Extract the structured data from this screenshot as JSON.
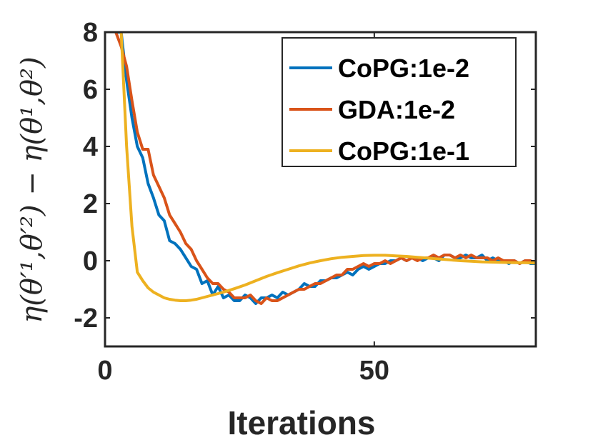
{
  "chart_data": {
    "type": "line",
    "xlabel": "Iterations",
    "ylabel": "η(θ′¹,θ′²) − η(θ¹,θ²)",
    "xlim": [
      0,
      80
    ],
    "ylim": [
      -3,
      8
    ],
    "xticks": [
      0,
      50
    ],
    "yticks": [
      8,
      6,
      4,
      2,
      0,
      -2
    ],
    "grid": false,
    "legend_position": "top-right",
    "series": [
      {
        "name": "CoPG:1e-2",
        "color": "#0072BD",
        "x": [
          2,
          3,
          4,
          5,
          6,
          7,
          8,
          9,
          10,
          11,
          12,
          13,
          14,
          15,
          16,
          17,
          18,
          19,
          20,
          21,
          22,
          23,
          24,
          25,
          26,
          27,
          28,
          29,
          30,
          31,
          32,
          33,
          34,
          35,
          36,
          37,
          38,
          39,
          40,
          41,
          42,
          43,
          44,
          45,
          46,
          47,
          48,
          49,
          50,
          51,
          52,
          53,
          54,
          55,
          56,
          57,
          58,
          59,
          60,
          61,
          62,
          63,
          64,
          65,
          66,
          67,
          68,
          69,
          70,
          71,
          72,
          73,
          74,
          75,
          76,
          77,
          78,
          79,
          80
        ],
        "y": [
          8,
          8,
          6.3,
          5.0,
          4.0,
          3.6,
          2.7,
          2.2,
          1.6,
          1.4,
          0.7,
          0.6,
          0.4,
          0.1,
          -0.2,
          -0.3,
          -0.8,
          -0.7,
          -1.2,
          -0.9,
          -1.3,
          -1.2,
          -1.4,
          -1.4,
          -1.2,
          -1.3,
          -1.5,
          -1.3,
          -1.3,
          -1.2,
          -1.3,
          -1.1,
          -1.2,
          -1.1,
          -1.0,
          -0.8,
          -0.9,
          -0.9,
          -0.7,
          -0.7,
          -0.6,
          -0.6,
          -0.5,
          -0.4,
          -0.5,
          -0.3,
          -0.2,
          -0.3,
          -0.2,
          -0.1,
          -0.1,
          0.0,
          0.0,
          0.1,
          0.0,
          0.1,
          0.1,
          0.0,
          0.1,
          0.1,
          0.0,
          0.2,
          0.2,
          0.1,
          0.1,
          0.2,
          0.1,
          0.1,
          0.2,
          0.0,
          0.1,
          0.0,
          0.0,
          -0.1,
          0.0,
          -0.1,
          0.0,
          -0.1,
          -0.1
        ]
      },
      {
        "name": "GDA:1e-2",
        "color": "#D95319",
        "x": [
          2,
          3,
          4,
          5,
          6,
          7,
          8,
          9,
          10,
          11,
          12,
          13,
          14,
          15,
          16,
          17,
          18,
          19,
          20,
          21,
          22,
          23,
          24,
          25,
          26,
          27,
          28,
          29,
          30,
          31,
          32,
          33,
          34,
          35,
          36,
          37,
          38,
          39,
          40,
          41,
          42,
          43,
          44,
          45,
          46,
          47,
          48,
          49,
          50,
          51,
          52,
          53,
          54,
          55,
          56,
          57,
          58,
          59,
          60,
          61,
          62,
          63,
          64,
          65,
          66,
          67,
          68,
          69,
          70,
          71,
          72,
          73,
          74,
          75,
          76,
          77,
          78,
          79,
          80
        ],
        "y": [
          8,
          7.5,
          6.8,
          5.6,
          4.5,
          3.9,
          3.9,
          3.0,
          2.6,
          2.2,
          1.6,
          1.3,
          1.0,
          0.6,
          0.4,
          0.0,
          -0.3,
          -0.6,
          -0.8,
          -0.8,
          -1.0,
          -1.1,
          -1.3,
          -1.3,
          -1.3,
          -1.2,
          -1.4,
          -1.5,
          -1.3,
          -1.4,
          -1.4,
          -1.3,
          -1.2,
          -1.1,
          -1.0,
          -1.0,
          -0.9,
          -0.8,
          -0.8,
          -0.7,
          -0.6,
          -0.5,
          -0.5,
          -0.3,
          -0.3,
          -0.2,
          -0.1,
          -0.2,
          -0.1,
          -0.1,
          0.0,
          -0.1,
          0.0,
          0.1,
          0.0,
          0.1,
          0.0,
          0.1,
          0.1,
          0.2,
          0.1,
          0.2,
          0.2,
          0.1,
          0.2,
          0.1,
          0.2,
          0.1,
          0.1,
          0.1,
          0.0,
          0.1,
          0.0,
          0.0,
          0.0,
          -0.1,
          0.0,
          0.0,
          -0.1
        ]
      },
      {
        "name": "CoPG:1e-1",
        "color": "#EDB120",
        "x": [
          3,
          4,
          5,
          6,
          7,
          8,
          9,
          10,
          11,
          12,
          13,
          14,
          15,
          16,
          17,
          18,
          19,
          20,
          22,
          24,
          26,
          28,
          30,
          32,
          34,
          36,
          38,
          40,
          42,
          44,
          46,
          48,
          50,
          52,
          54,
          56,
          58,
          60,
          62,
          64,
          66,
          68,
          70,
          72,
          74,
          76,
          78,
          80
        ],
        "y": [
          8,
          4.0,
          1.2,
          -0.4,
          -0.7,
          -0.95,
          -1.1,
          -1.2,
          -1.3,
          -1.35,
          -1.38,
          -1.4,
          -1.4,
          -1.38,
          -1.35,
          -1.3,
          -1.25,
          -1.2,
          -1.1,
          -0.98,
          -0.85,
          -0.7,
          -0.55,
          -0.42,
          -0.3,
          -0.18,
          -0.08,
          0.0,
          0.07,
          0.12,
          0.15,
          0.18,
          0.19,
          0.19,
          0.17,
          0.15,
          0.12,
          0.09,
          0.06,
          0.03,
          0.0,
          -0.02,
          -0.04,
          -0.05,
          -0.06,
          -0.07,
          -0.07,
          -0.08
        ]
      }
    ]
  }
}
